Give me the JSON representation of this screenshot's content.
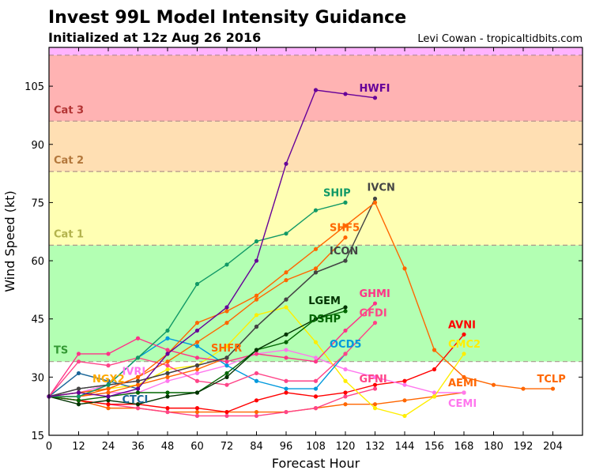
{
  "chart_data": {
    "type": "line",
    "title": "Invest 99L Model Intensity Guidance",
    "subtitle": "Initialized at 12z Aug 26 2016",
    "credit": "Levi Cowan - tropicaltidbits.com",
    "xlabel": "Forecast Hour",
    "ylabel": "Wind Speed (kt)",
    "xlim": [
      0,
      216
    ],
    "ylim": [
      15,
      115
    ],
    "xticks": [
      0,
      12,
      24,
      36,
      48,
      60,
      72,
      84,
      96,
      108,
      120,
      132,
      144,
      156,
      168,
      180,
      192,
      204
    ],
    "yticks": [
      15,
      30,
      45,
      60,
      75,
      90,
      105
    ],
    "grid": false,
    "bands": [
      {
        "label": "TS",
        "from": 34,
        "to": 64,
        "color": "#b3ffb3",
        "label_color": "#339933"
      },
      {
        "label": "Cat 1",
        "from": 64,
        "to": 83,
        "color": "#ffffb3",
        "label_color": "#b3b34d"
      },
      {
        "label": "Cat 2",
        "from": 83,
        "to": 96,
        "color": "#ffdfb3",
        "label_color": "#b3773b"
      },
      {
        "label": "Cat 3",
        "from": 96,
        "to": 113,
        "color": "#ffb3b3",
        "label_color": "#b33333"
      },
      {
        "label": "",
        "from": 113,
        "to": 115,
        "color": "#ffb3ff",
        "label_color": "#b333b3"
      }
    ],
    "series": [
      {
        "name": "AEMI",
        "color": "#ff6600",
        "values": [
          25,
          24,
          22,
          22,
          21,
          21,
          21,
          21,
          21,
          22,
          23,
          23,
          24,
          25,
          26
        ]
      },
      {
        "name": "GFNI",
        "color": "#ff4488",
        "values": [
          25,
          24,
          23,
          22,
          21,
          20,
          20,
          20,
          21,
          22,
          25,
          27
        ]
      },
      {
        "name": "AVNI",
        "color": "#ff0000",
        "values": [
          25,
          24,
          23,
          23,
          22,
          22,
          21,
          24,
          26,
          25,
          26,
          28,
          29,
          32,
          41
        ]
      },
      {
        "name": "CEMI",
        "color": "#ff77ee",
        "values": [
          25,
          25,
          26,
          26,
          29,
          31,
          33,
          36,
          37,
          35,
          32,
          30,
          28,
          26,
          26
        ]
      },
      {
        "name": "CMC2",
        "color": "#ffee00",
        "values": [
          25,
          25,
          27,
          28,
          32,
          33,
          38,
          46,
          48,
          39,
          29,
          22,
          20,
          25,
          36
        ]
      },
      {
        "name": "NGX2",
        "color": "#ffaa00",
        "values": [
          25,
          26,
          27
        ]
      },
      {
        "name": "IVRI",
        "color": "#ff77ee",
        "values": [
          25,
          26,
          28,
          29
        ]
      },
      {
        "name": "CTCI",
        "color": "#1a6699",
        "values": [
          25,
          31,
          29,
          27
        ]
      },
      {
        "name": "SHFR",
        "color": "#ff6600",
        "values": [
          25,
          25,
          26,
          28,
          30,
          32,
          35
        ]
      },
      {
        "name": "OCD5",
        "color": "#0099dd",
        "values": [
          25,
          25,
          28,
          35,
          40,
          38,
          33,
          29,
          27,
          27,
          36
        ]
      },
      {
        "name": "GFDI",
        "color": "#ff4488",
        "values": [
          25,
          34,
          33,
          35,
          33,
          29,
          28,
          31,
          29,
          29,
          36,
          44
        ]
      },
      {
        "name": "GHMI",
        "color": "#ff3388",
        "values": [
          25,
          36,
          36,
          40,
          37,
          35,
          34,
          36,
          35,
          34,
          42,
          49
        ]
      },
      {
        "name": "DSHP",
        "color": "#006600",
        "values": [
          25,
          24,
          25,
          26,
          26,
          26,
          31,
          37,
          39,
          45,
          47
        ]
      },
      {
        "name": "LGEM",
        "color": "#003300",
        "values": [
          25,
          23,
          24,
          23,
          25,
          26,
          30,
          37,
          41,
          45,
          48
        ]
      },
      {
        "name": "ICON",
        "color": "#444444",
        "values": [
          25,
          27,
          28,
          29,
          31,
          33,
          35,
          43,
          50,
          57,
          60
        ]
      },
      {
        "name": "IVCN",
        "color": "#444444",
        "values": [
          25,
          27,
          28,
          29,
          31,
          33,
          35,
          43,
          50,
          57,
          60,
          76
        ]
      },
      {
        "name": "TCLP",
        "color": "#ff6600",
        "values": [
          25,
          26,
          27,
          30,
          36,
          44,
          47,
          51,
          57,
          63,
          69,
          75,
          58,
          37,
          30,
          28,
          27,
          27
        ]
      },
      {
        "name": "SHF5",
        "color": "#ff6600",
        "values": [
          25,
          25,
          27,
          30,
          34,
          39,
          44,
          50,
          55,
          58,
          66
        ]
      },
      {
        "name": "SHIP",
        "color": "#119966",
        "values": [
          25,
          25,
          28,
          35,
          42,
          54,
          59,
          65,
          67,
          73,
          75
        ]
      },
      {
        "name": "HWFI",
        "color": "#660099",
        "values": [
          25,
          26,
          25,
          27,
          36,
          42,
          48,
          60,
          85,
          104,
          103,
          102
        ]
      }
    ]
  }
}
